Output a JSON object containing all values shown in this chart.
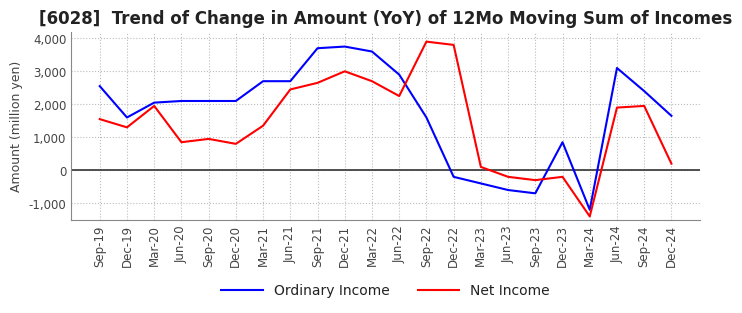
{
  "title": "[6028]  Trend of Change in Amount (YoY) of 12Mo Moving Sum of Incomes",
  "ylabel": "Amount (million yen)",
  "ylim": [
    -1500,
    4200
  ],
  "yticks": [
    -1000,
    0,
    1000,
    2000,
    3000,
    4000
  ],
  "x_labels": [
    "Sep-19",
    "Dec-19",
    "Mar-20",
    "Jun-20",
    "Sep-20",
    "Dec-20",
    "Mar-21",
    "Jun-21",
    "Sep-21",
    "Dec-21",
    "Mar-22",
    "Jun-22",
    "Sep-22",
    "Dec-22",
    "Mar-23",
    "Jun-23",
    "Sep-23",
    "Dec-23",
    "Mar-24",
    "Jun-24",
    "Sep-24",
    "Dec-24"
  ],
  "ordinary_income": [
    2550,
    1600,
    2050,
    2100,
    2100,
    2100,
    2700,
    2700,
    3700,
    3750,
    3600,
    2900,
    1600,
    -200,
    -400,
    -600,
    -700,
    850,
    -1200,
    3100,
    2400,
    1650
  ],
  "net_income": [
    1550,
    1300,
    1950,
    850,
    950,
    800,
    1350,
    2450,
    2650,
    3000,
    2700,
    2250,
    3900,
    3800,
    100,
    -200,
    -300,
    -200,
    -1400,
    1900,
    1950,
    200
  ],
  "ordinary_color": "#0000ff",
  "net_color": "#ff0000",
  "line_width": 1.5,
  "title_fontsize": 12,
  "label_fontsize": 9,
  "tick_fontsize": 8.5,
  "background_color": "#ffffff",
  "grid_color": "#bbbbbb"
}
